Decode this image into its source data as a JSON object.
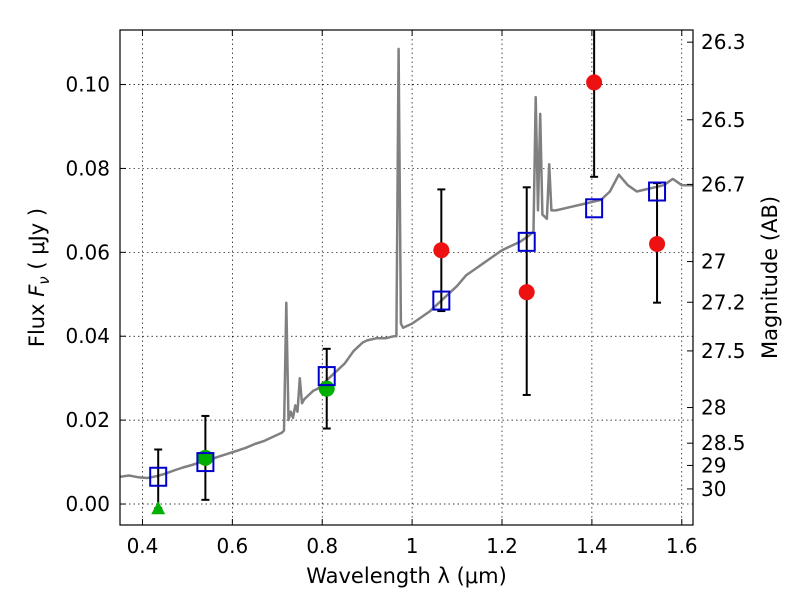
{
  "chart_data": {
    "type": "scatter",
    "xlabel": "Wavelength  λ (μm)",
    "ylabel": "Flux  F_ν  ( μJy )",
    "ylabel_parts": {
      "prefix": "Flux  ",
      "symbol": "F",
      "subscript": "ν",
      "suffix": "  ( μJy )"
    },
    "y2label": "Magnitude (AB)",
    "xlim": [
      0.35,
      1.625
    ],
    "ylim": [
      -0.005,
      0.113
    ],
    "grid": true,
    "x_ticks": [
      0.4,
      0.6,
      0.8,
      1.0,
      1.2,
      1.4,
      1.6
    ],
    "x_tick_labels": [
      "0.4",
      "0.6",
      "0.8",
      "1",
      "1.2",
      "1.4",
      "1.6"
    ],
    "y_ticks": [
      0.0,
      0.02,
      0.04,
      0.06,
      0.08,
      0.1
    ],
    "y_tick_labels": [
      "0.00",
      "0.02",
      "0.04",
      "0.06",
      "0.08",
      "0.10"
    ],
    "y2_ticks": [
      {
        "label": "26.3",
        "flux": 0.1101
      },
      {
        "label": "26.5",
        "flux": 0.0916
      },
      {
        "label": "26.7",
        "flux": 0.0762
      },
      {
        "label": "27",
        "flux": 0.0578
      },
      {
        "label": "27.2",
        "flux": 0.0481
      },
      {
        "label": "27.5",
        "flux": 0.0365
      },
      {
        "label": "28",
        "flux": 0.023
      },
      {
        "label": "28.5",
        "flux": 0.0145
      },
      {
        "label": "29",
        "flux": 0.0092
      },
      {
        "label": "30",
        "flux": 0.0036
      }
    ],
    "series": [
      {
        "kind": "line",
        "color": "#808080",
        "points": [
          [
            0.35,
            0.0065
          ],
          [
            0.37,
            0.0068
          ],
          [
            0.39,
            0.0064
          ],
          [
            0.41,
            0.0062
          ],
          [
            0.43,
            0.0066
          ],
          [
            0.45,
            0.0072
          ],
          [
            0.47,
            0.008
          ],
          [
            0.49,
            0.0087
          ],
          [
            0.51,
            0.0093
          ],
          [
            0.53,
            0.01
          ],
          [
            0.55,
            0.0106
          ],
          [
            0.57,
            0.0113
          ],
          [
            0.59,
            0.012
          ],
          [
            0.61,
            0.0127
          ],
          [
            0.63,
            0.0134
          ],
          [
            0.65,
            0.0143
          ],
          [
            0.67,
            0.015
          ],
          [
            0.69,
            0.016
          ],
          [
            0.71,
            0.017
          ],
          [
            0.715,
            0.0175
          ],
          [
            0.72,
            0.048
          ],
          [
            0.725,
            0.02
          ],
          [
            0.73,
            0.022
          ],
          [
            0.735,
            0.0205
          ],
          [
            0.74,
            0.0235
          ],
          [
            0.745,
            0.022
          ],
          [
            0.75,
            0.03
          ],
          [
            0.755,
            0.024
          ],
          [
            0.76,
            0.025
          ],
          [
            0.77,
            0.026
          ],
          [
            0.78,
            0.027
          ],
          [
            0.79,
            0.0275
          ],
          [
            0.8,
            0.0285
          ],
          [
            0.81,
            0.0295
          ],
          [
            0.82,
            0.0305
          ],
          [
            0.83,
            0.0315
          ],
          [
            0.84,
            0.0325
          ],
          [
            0.85,
            0.0335
          ],
          [
            0.86,
            0.035
          ],
          [
            0.87,
            0.0365
          ],
          [
            0.88,
            0.0375
          ],
          [
            0.89,
            0.0385
          ],
          [
            0.9,
            0.039
          ],
          [
            0.92,
            0.0395
          ],
          [
            0.94,
            0.0395
          ],
          [
            0.96,
            0.04
          ],
          [
            0.965,
            0.04
          ],
          [
            0.97,
            0.1085
          ],
          [
            0.975,
            0.043
          ],
          [
            0.98,
            0.042
          ],
          [
            1.0,
            0.043
          ],
          [
            1.02,
            0.0445
          ],
          [
            1.04,
            0.046
          ],
          [
            1.06,
            0.048
          ],
          [
            1.08,
            0.05
          ],
          [
            1.1,
            0.052
          ],
          [
            1.12,
            0.0545
          ],
          [
            1.14,
            0.056
          ],
          [
            1.16,
            0.0575
          ],
          [
            1.18,
            0.059
          ],
          [
            1.2,
            0.0605
          ],
          [
            1.22,
            0.0615
          ],
          [
            1.24,
            0.0625
          ],
          [
            1.26,
            0.064
          ],
          [
            1.27,
            0.065
          ],
          [
            1.275,
            0.097
          ],
          [
            1.28,
            0.07
          ],
          [
            1.285,
            0.093
          ],
          [
            1.29,
            0.069
          ],
          [
            1.3,
            0.068
          ],
          [
            1.305,
            0.081
          ],
          [
            1.31,
            0.07
          ],
          [
            1.32,
            0.07
          ],
          [
            1.34,
            0.0705
          ],
          [
            1.36,
            0.071
          ],
          [
            1.38,
            0.0715
          ],
          [
            1.4,
            0.072
          ],
          [
            1.42,
            0.0725
          ],
          [
            1.44,
            0.0745
          ],
          [
            1.46,
            0.0785
          ],
          [
            1.48,
            0.076
          ],
          [
            1.5,
            0.0745
          ],
          [
            1.52,
            0.075
          ],
          [
            1.54,
            0.0755
          ],
          [
            1.56,
            0.076
          ],
          [
            1.58,
            0.0775
          ],
          [
            1.6,
            0.076
          ],
          [
            1.625,
            0.076
          ]
        ]
      },
      {
        "kind": "open-squares",
        "color": "#0000cc",
        "points": [
          [
            0.435,
            0.0065
          ],
          [
            0.54,
            0.01
          ],
          [
            0.81,
            0.0305
          ],
          [
            1.065,
            0.0485
          ],
          [
            1.255,
            0.0625
          ],
          [
            1.405,
            0.0705
          ],
          [
            1.545,
            0.0745
          ]
        ]
      },
      {
        "kind": "filled-circles",
        "color": "#00b000",
        "points": [
          [
            0.54,
            0.011
          ],
          [
            0.81,
            0.0275
          ]
        ]
      },
      {
        "kind": "filled-circles",
        "color": "#ee1111",
        "points": [
          [
            1.065,
            0.0605
          ],
          [
            1.255,
            0.0505
          ],
          [
            1.405,
            0.1005
          ],
          [
            1.545,
            0.062
          ]
        ]
      },
      {
        "kind": "triangle",
        "color": "#00b000",
        "points": [
          [
            0.435,
            -0.001
          ]
        ]
      }
    ],
    "errorbars": [
      {
        "x": 0.435,
        "low": -0.001,
        "high": 0.013
      },
      {
        "x": 0.54,
        "low": 0.001,
        "high": 0.021
      },
      {
        "x": 0.81,
        "low": 0.018,
        "high": 0.037
      },
      {
        "x": 1.065,
        "low": 0.046,
        "high": 0.075
      },
      {
        "x": 1.255,
        "low": 0.026,
        "high": 0.0755
      },
      {
        "x": 1.405,
        "low": 0.078,
        "high": 0.113
      },
      {
        "x": 1.545,
        "low": 0.048,
        "high": 0.0765
      }
    ]
  }
}
